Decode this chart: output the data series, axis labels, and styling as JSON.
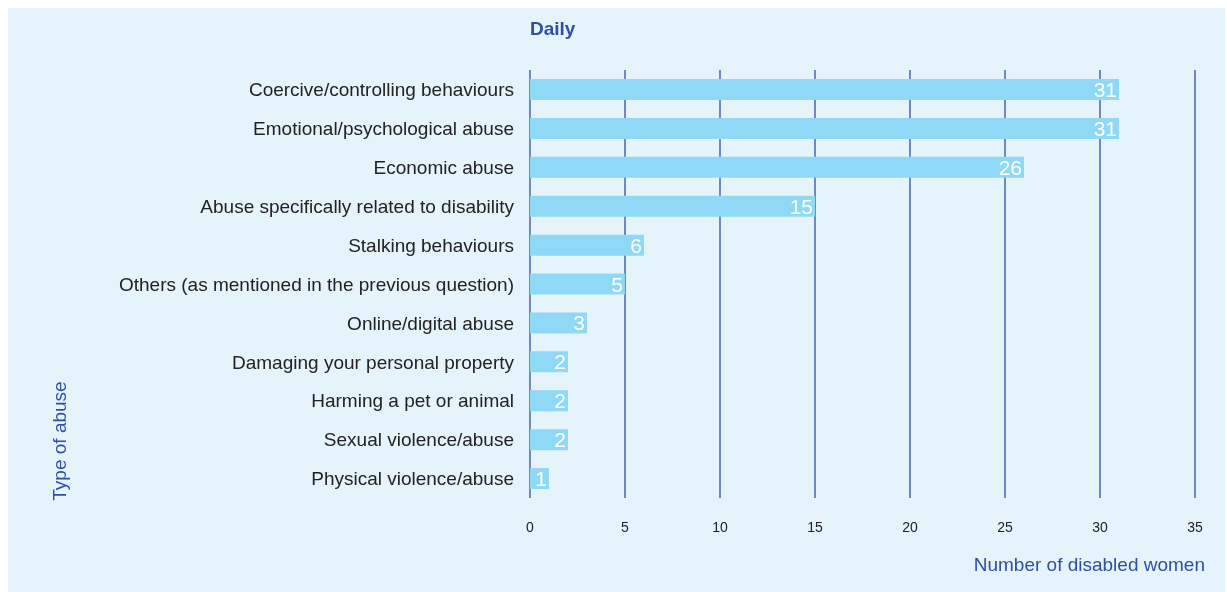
{
  "chart_data": {
    "type": "bar",
    "orientation": "horizontal",
    "title": "Daily",
    "xlabel": "Number of disabled women",
    "ylabel": "Type of abuse",
    "categories": [
      "Coercive/controlling behaviours",
      "Emotional/psychological abuse",
      "Economic abuse",
      "Abuse specifically related to disability",
      "Stalking behaviours",
      "Others (as mentioned in the previous question)",
      "Online/digital abuse",
      "Damaging your personal property",
      "Harming a pet or animal",
      "Sexual violence/abuse",
      "Physical violence/abuse"
    ],
    "values": [
      31,
      31,
      26,
      15,
      6,
      5,
      3,
      2,
      2,
      2,
      1
    ],
    "color": "#8fd8f6",
    "xlim": [
      0,
      35
    ],
    "xticks": [
      0,
      5,
      10,
      15,
      20,
      25,
      30,
      35
    ],
    "grid": "x",
    "data_labels": true
  }
}
